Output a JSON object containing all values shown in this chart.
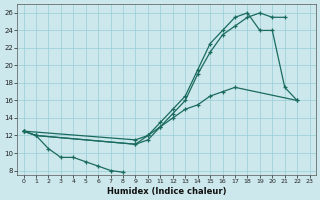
{
  "xlabel": "Humidex (Indice chaleur)",
  "xlim": [
    -0.5,
    23.5
  ],
  "ylim": [
    7.5,
    27
  ],
  "yticks": [
    8,
    10,
    12,
    14,
    16,
    18,
    20,
    22,
    24,
    26
  ],
  "xticks": [
    0,
    1,
    2,
    3,
    4,
    5,
    6,
    7,
    8,
    9,
    10,
    11,
    12,
    13,
    14,
    15,
    16,
    17,
    18,
    19,
    20,
    21,
    22,
    23
  ],
  "background_color": "#cce8ec",
  "grid_color": "#99ccd4",
  "line_color": "#1a6b5e",
  "line1_x": [
    0,
    1,
    2,
    3,
    4,
    5,
    6,
    7,
    8
  ],
  "line1_y": [
    12.5,
    12.0,
    10.5,
    9.5,
    9.5,
    9.0,
    8.5,
    8.0,
    7.8
  ],
  "line2_x": [
    0,
    1,
    9,
    10,
    11,
    12,
    13,
    14,
    15,
    16,
    17,
    18,
    19,
    20,
    21
  ],
  "line2_y": [
    12.5,
    12.0,
    11.0,
    11.5,
    13.0,
    14.5,
    16.0,
    19.0,
    21.5,
    23.5,
    24.5,
    25.5,
    26.0,
    25.5,
    25.5
  ],
  "line3_x": [
    0,
    9,
    10,
    11,
    12,
    13,
    14,
    15,
    16,
    17,
    18,
    19,
    20,
    21,
    22
  ],
  "line3_y": [
    12.5,
    11.5,
    12.0,
    13.5,
    15.0,
    16.5,
    19.5,
    22.5,
    24.0,
    25.5,
    26.0,
    24.0,
    24.0,
    17.5,
    16.0
  ],
  "line4_x": [
    0,
    1,
    9,
    10,
    11,
    12,
    13,
    14,
    15,
    16,
    17,
    22
  ],
  "line4_y": [
    12.5,
    12.0,
    11.0,
    12.0,
    13.0,
    14.0,
    15.0,
    15.5,
    16.5,
    17.0,
    17.5,
    16.0
  ]
}
